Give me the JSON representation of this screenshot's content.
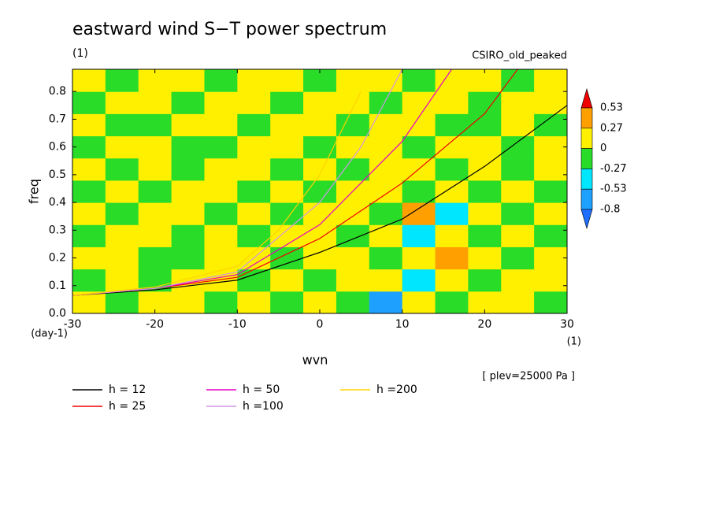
{
  "chart_data": {
    "type": "contour",
    "title": "eastward wind S−T power spectrum",
    "subtitle": "(1)",
    "annotation": "CSIRO_old_peaked",
    "xlabel": "wvn",
    "ylabel": "freq",
    "y_unit": "(day-1)",
    "x_unit": "(1)",
    "footnote": "[ plev=25000 Pa ]",
    "xlim": [
      -30,
      30
    ],
    "ylim": [
      0,
      0.88
    ],
    "xticks": [
      -30,
      -20,
      -10,
      0,
      10,
      20,
      30
    ],
    "yticks": [
      {
        "value": 0,
        "label": "0.0"
      },
      0.1,
      0.2,
      0.3,
      0.4,
      0.5,
      0.6,
      0.7,
      0.8
    ],
    "colorbar": {
      "levels": [
        0.53,
        0.27,
        0,
        -0.27,
        -0.53,
        -0.8
      ],
      "colors": [
        "#f00000",
        "#ffa000",
        "#fff000",
        "#28dc28",
        "#00e6ff",
        "#1ea0ff",
        "#1e6eff"
      ]
    },
    "field": {
      "x": [
        -28,
        -24,
        -20,
        -16,
        -12,
        -8,
        -4,
        0,
        4,
        8,
        12,
        16,
        20,
        24,
        28
      ],
      "y": [
        0.04,
        0.12,
        0.2,
        0.28,
        0.36,
        0.44,
        0.52,
        0.6,
        0.68,
        0.76,
        0.84
      ],
      "z": [
        [
          0.1,
          -0.1,
          0.1,
          0.1,
          -0.1,
          0.1,
          -0.1,
          0.1,
          -0.1,
          -0.6,
          0.1,
          -0.1,
          0.1,
          0.1,
          -0.1
        ],
        [
          -0.1,
          0.1,
          -0.1,
          0.1,
          0.1,
          -0.1,
          0.1,
          -0.1,
          0.1,
          0.1,
          -0.3,
          0.1,
          -0.1,
          0.1,
          0.1
        ],
        [
          0.1,
          0.1,
          -0.1,
          -0.1,
          0.1,
          0.1,
          -0.1,
          0.1,
          0.1,
          -0.1,
          0.1,
          0.3,
          0.1,
          -0.1,
          0.1
        ],
        [
          -0.1,
          0.1,
          0.1,
          -0.1,
          0.1,
          -0.1,
          0.1,
          0.1,
          -0.1,
          0.1,
          -0.4,
          0.1,
          -0.1,
          0.1,
          -0.1
        ],
        [
          0.1,
          -0.1,
          0.1,
          0.1,
          -0.1,
          0.1,
          -0.1,
          0.1,
          0.1,
          -0.1,
          0.3,
          -0.4,
          0.1,
          -0.1,
          0.1
        ],
        [
          -0.1,
          0.1,
          -0.1,
          0.1,
          0.1,
          -0.1,
          0.1,
          -0.1,
          0.1,
          0.1,
          -0.1,
          0.1,
          -0.1,
          0.1,
          -0.1
        ],
        [
          0.1,
          -0.1,
          0.1,
          -0.1,
          0.1,
          0.1,
          -0.1,
          0.1,
          -0.1,
          0.1,
          0.1,
          -0.1,
          0.1,
          -0.1,
          0.1
        ],
        [
          -0.1,
          0.1,
          0.1,
          -0.1,
          -0.1,
          0.1,
          0.1,
          -0.1,
          0.1,
          0.1,
          -0.1,
          0.1,
          0.1,
          -0.1,
          0.1
        ],
        [
          0.1,
          -0.1,
          -0.1,
          0.1,
          0.1,
          -0.1,
          0.1,
          0.1,
          -0.1,
          0.1,
          0.1,
          -0.1,
          -0.1,
          0.1,
          -0.1
        ],
        [
          -0.1,
          0.1,
          0.1,
          -0.1,
          0.1,
          0.1,
          -0.1,
          0.1,
          0.1,
          -0.1,
          0.1,
          0.1,
          -0.1,
          0.1,
          0.1
        ],
        [
          0.1,
          -0.1,
          0.1,
          0.1,
          -0.1,
          0.1,
          0.1,
          -0.1,
          0.1,
          0.1,
          -0.1,
          0.1,
          0.1,
          -0.1,
          0.1
        ]
      ]
    },
    "series": [
      {
        "name": "h = 12",
        "color": "#000000",
        "x": [
          -30,
          -20,
          -10,
          0,
          10,
          20,
          30
        ],
        "values": [
          0.065,
          0.085,
          0.12,
          0.22,
          0.34,
          0.53,
          0.75
        ]
      },
      {
        "name": "h = 25",
        "color": "#f00000",
        "x": [
          -30,
          -20,
          -10,
          0,
          10,
          20,
          24
        ],
        "values": [
          0.065,
          0.09,
          0.13,
          0.27,
          0.47,
          0.72,
          0.88
        ]
      },
      {
        "name": "h = 50",
        "color": "#e600c8",
        "x": [
          -30,
          -20,
          -10,
          0,
          10,
          16
        ],
        "values": [
          0.065,
          0.09,
          0.14,
          0.32,
          0.62,
          0.88
        ]
      },
      {
        "name": "h =100",
        "color": "#d296e6",
        "x": [
          -30,
          -20,
          -10,
          0,
          5,
          10
        ],
        "values": [
          0.065,
          0.09,
          0.15,
          0.4,
          0.6,
          0.88
        ]
      },
      {
        "name": "h =200",
        "color": "#ffd200",
        "x": [
          -30,
          -20,
          -10,
          -5,
          0,
          5
        ],
        "values": [
          0.065,
          0.095,
          0.17,
          0.3,
          0.5,
          0.8
        ]
      }
    ]
  }
}
